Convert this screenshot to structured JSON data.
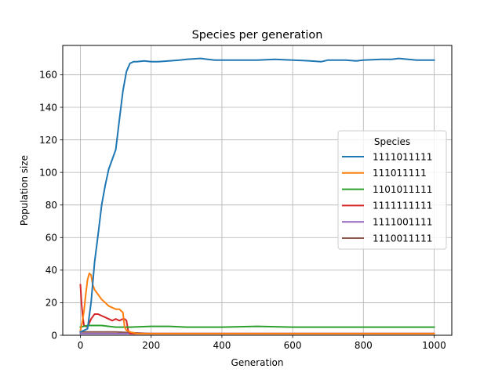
{
  "chart_data": {
    "type": "line",
    "title": "Species per generation",
    "xlabel": "Generation",
    "ylabel": "Population size",
    "xlim": [
      -50,
      1050
    ],
    "ylim": [
      0,
      178
    ],
    "xticks": [
      0,
      200,
      400,
      600,
      800,
      1000
    ],
    "yticks": [
      0,
      20,
      40,
      60,
      80,
      100,
      120,
      140,
      160
    ],
    "grid": true,
    "legend": {
      "title": "Species",
      "placement": "center-right"
    },
    "series": [
      {
        "name": "1111011111",
        "color": "#1f77b4",
        "points": [
          [
            0,
            2
          ],
          [
            10,
            3
          ],
          [
            20,
            4
          ],
          [
            30,
            20
          ],
          [
            40,
            45
          ],
          [
            50,
            62
          ],
          [
            60,
            80
          ],
          [
            70,
            92
          ],
          [
            80,
            102
          ],
          [
            90,
            108
          ],
          [
            100,
            114
          ],
          [
            110,
            132
          ],
          [
            120,
            150
          ],
          [
            130,
            162
          ],
          [
            140,
            167
          ],
          [
            150,
            168
          ],
          [
            160,
            168
          ],
          [
            180,
            168.5
          ],
          [
            200,
            168
          ],
          [
            220,
            168
          ],
          [
            250,
            168.5
          ],
          [
            280,
            169
          ],
          [
            300,
            169.5
          ],
          [
            340,
            170
          ],
          [
            360,
            169.5
          ],
          [
            380,
            169
          ],
          [
            400,
            169
          ],
          [
            450,
            169
          ],
          [
            500,
            169
          ],
          [
            550,
            169.5
          ],
          [
            600,
            169
          ],
          [
            650,
            168.5
          ],
          [
            680,
            168
          ],
          [
            700,
            169
          ],
          [
            750,
            169
          ],
          [
            780,
            168.5
          ],
          [
            800,
            169
          ],
          [
            850,
            169.5
          ],
          [
            880,
            169.5
          ],
          [
            900,
            170
          ],
          [
            950,
            169
          ],
          [
            1000,
            169
          ]
        ]
      },
      {
        "name": "111011111",
        "color": "#ff7f0e",
        "points": [
          [
            0,
            3
          ],
          [
            5,
            8
          ],
          [
            10,
            15
          ],
          [
            15,
            25
          ],
          [
            20,
            34
          ],
          [
            25,
            38
          ],
          [
            30,
            37
          ],
          [
            35,
            31
          ],
          [
            40,
            28
          ],
          [
            50,
            25
          ],
          [
            60,
            22
          ],
          [
            70,
            20
          ],
          [
            80,
            18
          ],
          [
            90,
            17
          ],
          [
            100,
            16
          ],
          [
            110,
            16
          ],
          [
            120,
            14
          ],
          [
            125,
            5
          ],
          [
            130,
            3
          ],
          [
            140,
            2
          ],
          [
            160,
            1
          ],
          [
            200,
            1
          ],
          [
            400,
            1
          ],
          [
            600,
            1
          ],
          [
            800,
            1
          ],
          [
            1000,
            1
          ]
        ]
      },
      {
        "name": "1101011111",
        "color": "#2ca02c",
        "points": [
          [
            0,
            5
          ],
          [
            20,
            6
          ],
          [
            40,
            6
          ],
          [
            60,
            6
          ],
          [
            80,
            5.5
          ],
          [
            100,
            5
          ],
          [
            140,
            5
          ],
          [
            200,
            5.5
          ],
          [
            250,
            5.5
          ],
          [
            300,
            5
          ],
          [
            400,
            5
          ],
          [
            500,
            5.5
          ],
          [
            600,
            5
          ],
          [
            700,
            5
          ],
          [
            800,
            5
          ],
          [
            900,
            5
          ],
          [
            1000,
            5
          ]
        ]
      },
      {
        "name": "1111111111",
        "color": "#d62728",
        "points": [
          [
            0,
            31
          ],
          [
            3,
            20
          ],
          [
            6,
            12
          ],
          [
            10,
            6
          ],
          [
            20,
            5
          ],
          [
            30,
            10
          ],
          [
            40,
            13
          ],
          [
            50,
            13
          ],
          [
            60,
            12
          ],
          [
            70,
            11
          ],
          [
            80,
            10
          ],
          [
            90,
            9
          ],
          [
            100,
            10
          ],
          [
            110,
            9
          ],
          [
            120,
            10
          ],
          [
            125,
            10
          ],
          [
            130,
            9
          ],
          [
            135,
            3
          ],
          [
            140,
            1
          ],
          [
            200,
            1
          ],
          [
            400,
            1
          ],
          [
            600,
            1
          ],
          [
            800,
            1
          ],
          [
            1000,
            1
          ]
        ]
      },
      {
        "name": "1111001111",
        "color": "#9467bd",
        "points": [
          [
            0,
            1
          ],
          [
            50,
            1
          ],
          [
            100,
            1
          ],
          [
            200,
            1
          ],
          [
            300,
            1
          ],
          [
            400,
            1
          ],
          [
            500,
            1
          ],
          [
            600,
            1
          ],
          [
            700,
            1
          ],
          [
            800,
            1
          ],
          [
            900,
            1
          ],
          [
            1000,
            1
          ]
        ]
      },
      {
        "name": "1110011111",
        "color": "#8c564b",
        "points": [
          [
            0,
            2
          ],
          [
            50,
            2
          ],
          [
            100,
            2
          ],
          [
            150,
            1.5
          ],
          [
            200,
            1
          ],
          [
            300,
            1
          ],
          [
            400,
            1
          ],
          [
            500,
            1
          ],
          [
            600,
            1
          ],
          [
            700,
            1
          ],
          [
            800,
            1
          ],
          [
            900,
            1
          ],
          [
            1000,
            1
          ]
        ]
      }
    ]
  }
}
